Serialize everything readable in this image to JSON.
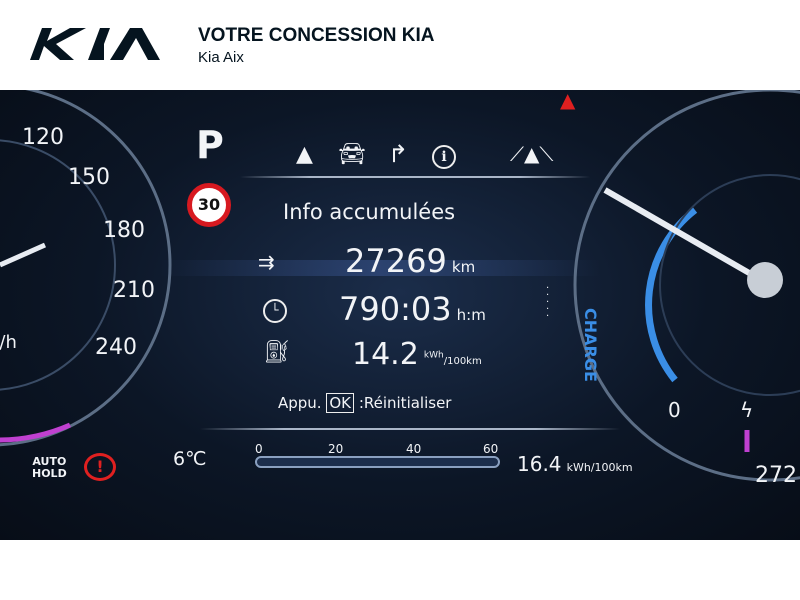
{
  "header": {
    "brand": "KIA",
    "title": "VOTRE CONCESSION KIA",
    "subtitle": "Kia Aix"
  },
  "dashboard": {
    "gear": "P",
    "speed_limit": "30",
    "screen_title": "Info accumulées",
    "distance": {
      "value": "27269",
      "unit": "km"
    },
    "time": {
      "value": "790:03",
      "unit": "h:m"
    },
    "consumption": {
      "value": "14.2",
      "unit_top": "kWh",
      "unit_bottom": "/100km"
    },
    "reset_hint": {
      "prefix": "Appu.",
      "key": "OK",
      "action": ":Réinitialiser"
    },
    "outside_temp": "6℃",
    "bar_ticks": [
      "0",
      "20",
      "40",
      "60"
    ],
    "instant_consumption": {
      "value": "16.4",
      "unit": "kWh/100km"
    },
    "speed_ticks": [
      "120",
      "150",
      "180",
      "210",
      "240"
    ],
    "speed_unit": "h/h",
    "auto_hold": [
      "AUTO",
      "HOLD"
    ],
    "power_label": "CHARGE",
    "power_zero": "0",
    "odometer_partial": "272",
    "colors": {
      "accent_blue": "#3a8ee6",
      "warning_red": "#e02020",
      "magenta": "#c040d0"
    }
  }
}
